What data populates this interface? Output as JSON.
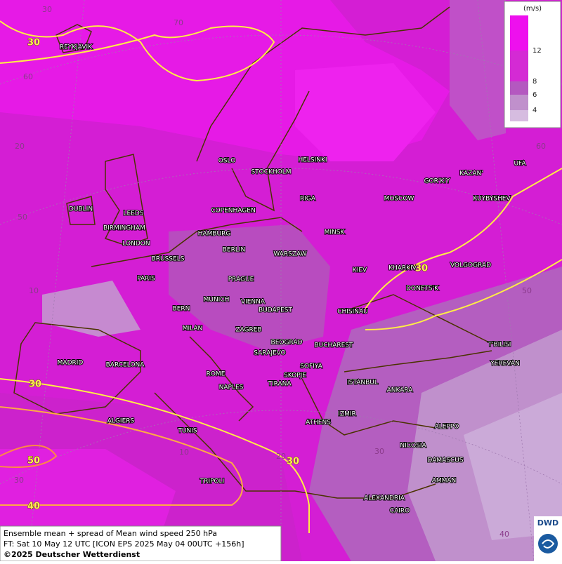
{
  "legend": {
    "unit": "(m/s)",
    "labels": [
      "12",
      "8",
      "6",
      "4"
    ]
  },
  "cities": [
    "REYKJAVIK",
    "OSLO",
    "STOCKHOLM",
    "HELSINKI",
    "RIGA",
    "DUBLIN",
    "LEEDS",
    "COPENHAGEN",
    "BIRMINGHAM",
    "HAMBURG",
    "MINSK",
    "LONDON",
    "BERLIN",
    "WARSZAW",
    "MOSCOW",
    "GOR'KIY",
    "KAZAN'",
    "UFA",
    "KUYBYSHEV",
    "BRUSSELS",
    "KIEV",
    "KHARKIV",
    "VOLGOGRAD",
    "PARIS",
    "PRAGUE",
    "DONETS'K",
    "MUNICH",
    "VIENNA",
    "BERN",
    "BUDAPEST",
    "CHISINAU",
    "MILAN",
    "ZAGREB",
    "BEOGRAD",
    "BUCHAREST",
    "T'BILISI",
    "SARAJEVO",
    "MADRID",
    "BARCELONA",
    "SOFIYA",
    "YEREVAN",
    "ROME",
    "SKOPJE",
    "TIRANA",
    "ISTANBUL",
    "ANKARA",
    "NAPLES",
    "ALGIERS",
    "ATHENS",
    "IZMIR",
    "ALEPPO",
    "TUNIS",
    "NICOSIA",
    "DAMASCUS",
    "AMMAN",
    "TRIPOLI",
    "ALEXANDRIA",
    "CAIRO"
  ],
  "grid_labels": [
    "30",
    "70",
    "60",
    "20",
    "60",
    "50",
    "50",
    "10",
    "10",
    "20",
    "30",
    "40",
    "30"
  ],
  "contour_labels": [
    "30",
    "30",
    "30",
    "30",
    "50",
    "40"
  ],
  "footer": {
    "line1": "Ensemble mean + spread of Mean wind speed 250 hPa",
    "line2": "FT: Sat 10 May 12 UTC [ICON EPS 2025 May 04 00UTC +156h]",
    "copyright": "©2025 Deutscher Wetterdienst"
  },
  "logo": "DWD"
}
